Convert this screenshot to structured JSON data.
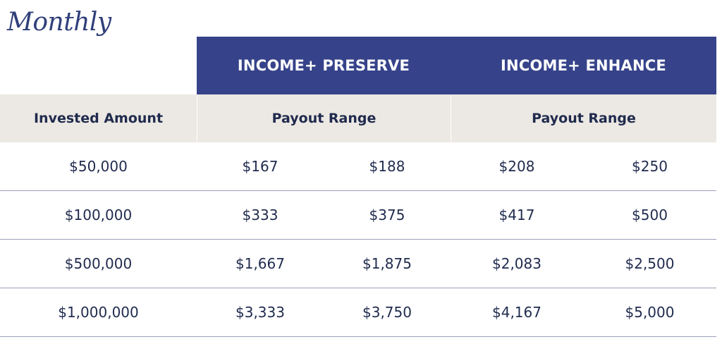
{
  "title": "Monthly",
  "header": {
    "preserve": "INCOME+ PRESERVE",
    "enhance": "INCOME+ ENHANCE"
  },
  "subheader": {
    "invested": "Invested Amount",
    "preserve_range": "Payout Range",
    "enhance_range": "Payout Range"
  },
  "rows": [
    {
      "amount": "$50,000",
      "preserve_low": "$167",
      "preserve_high": "$188",
      "enhance_low": "$208",
      "enhance_high": "$250"
    },
    {
      "amount": "$100,000",
      "preserve_low": "$333",
      "preserve_high": "$375",
      "enhance_low": "$417",
      "enhance_high": "$500"
    },
    {
      "amount": "$500,000",
      "preserve_low": "$1,667",
      "preserve_high": "$1,875",
      "enhance_low": "$2,083",
      "enhance_high": "$2,500"
    },
    {
      "amount": "$1,000,000",
      "preserve_low": "$3,333",
      "preserve_high": "$3,750",
      "enhance_low": "$4,167",
      "enhance_high": "$5,000"
    }
  ],
  "colors": {
    "header_bg": "#36438a",
    "subheader_bg": "#ece8e3",
    "text": "#1f2a4d"
  }
}
